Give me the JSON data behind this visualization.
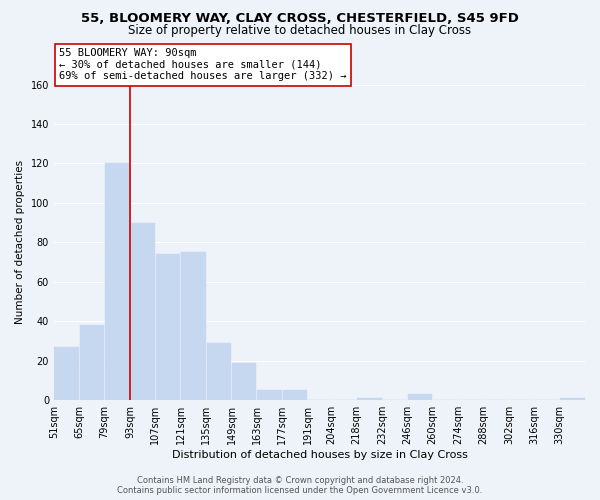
{
  "title": "55, BLOOMERY WAY, CLAY CROSS, CHESTERFIELD, S45 9FD",
  "subtitle": "Size of property relative to detached houses in Clay Cross",
  "xlabel": "Distribution of detached houses by size in Clay Cross",
  "ylabel": "Number of detached properties",
  "bar_color": "#c5d8f0",
  "background_color": "#eef2f9",
  "bin_labels": [
    "51sqm",
    "65sqm",
    "79sqm",
    "93sqm",
    "107sqm",
    "121sqm",
    "135sqm",
    "149sqm",
    "163sqm",
    "177sqm",
    "191sqm",
    "204sqm",
    "218sqm",
    "232sqm",
    "246sqm",
    "260sqm",
    "274sqm",
    "288sqm",
    "302sqm",
    "316sqm",
    "330sqm"
  ],
  "bin_edges_numeric": [
    51,
    65,
    79,
    93,
    107,
    121,
    135,
    149,
    163,
    177,
    191,
    204,
    218,
    232,
    246,
    260,
    274,
    288,
    302,
    316,
    330
  ],
  "bar_heights": [
    27,
    38,
    120,
    90,
    74,
    75,
    29,
    19,
    5,
    5,
    0,
    0,
    1,
    0,
    3,
    0,
    0,
    0,
    0,
    0,
    1
  ],
  "ylim": [
    0,
    160
  ],
  "yticks": [
    0,
    20,
    40,
    60,
    80,
    100,
    120,
    140,
    160
  ],
  "property_line_x": 93,
  "property_line_color": "#cc0000",
  "annotation_text": "55 BLOOMERY WAY: 90sqm\n← 30% of detached houses are smaller (144)\n69% of semi-detached houses are larger (332) →",
  "annotation_box_facecolor": "#ffffff",
  "annotation_box_edgecolor": "#cc0000",
  "footer_line1": "Contains HM Land Registry data © Crown copyright and database right 2024.",
  "footer_line2": "Contains public sector information licensed under the Open Government Licence v3.0.",
  "title_fontsize": 9.5,
  "subtitle_fontsize": 8.5,
  "xlabel_fontsize": 8,
  "ylabel_fontsize": 7.5,
  "tick_fontsize": 7,
  "annotation_fontsize": 7.5,
  "footer_fontsize": 6
}
